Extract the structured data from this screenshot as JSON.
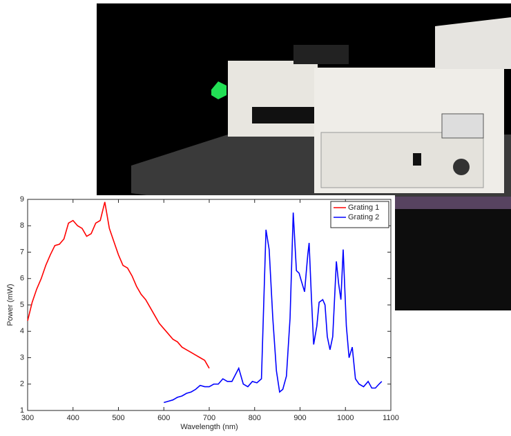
{
  "chart_data": {
    "type": "line",
    "xlabel": "Wavelength (nm)",
    "ylabel": "Power (mW)",
    "xlim": [
      300,
      1100
    ],
    "ylim": [
      1,
      9
    ],
    "xticks": [
      300,
      400,
      500,
      600,
      700,
      800,
      900,
      1000,
      1100
    ],
    "yticks": [
      1,
      2,
      3,
      4,
      5,
      6,
      7,
      8,
      9
    ],
    "legend": "upper right",
    "series": [
      {
        "name": "Grating 1",
        "color": "#ff0000",
        "x": [
          300,
          310,
          320,
          330,
          340,
          350,
          360,
          370,
          380,
          390,
          400,
          410,
          420,
          430,
          440,
          450,
          460,
          470,
          480,
          490,
          500,
          510,
          520,
          530,
          540,
          550,
          560,
          570,
          580,
          590,
          600,
          610,
          620,
          630,
          640,
          650,
          660,
          670,
          680,
          690,
          700
        ],
        "values": [
          4.4,
          5.1,
          5.6,
          6.0,
          6.5,
          6.9,
          7.25,
          7.3,
          7.5,
          8.1,
          8.2,
          8.0,
          7.9,
          7.6,
          7.7,
          8.1,
          8.2,
          8.9,
          7.9,
          7.4,
          6.9,
          6.5,
          6.4,
          6.1,
          5.7,
          5.4,
          5.2,
          4.9,
          4.6,
          4.3,
          4.1,
          3.9,
          3.7,
          3.6,
          3.4,
          3.3,
          3.2,
          3.1,
          3.0,
          2.9,
          2.6
        ]
      },
      {
        "name": "Grating 2",
        "color": "#0000ff",
        "x": [
          600,
          610,
          620,
          630,
          640,
          650,
          660,
          670,
          680,
          690,
          700,
          710,
          720,
          730,
          740,
          750,
          765,
          775,
          785,
          795,
          805,
          815,
          825,
          832,
          840,
          848,
          855,
          862,
          870,
          878,
          885,
          892,
          898,
          903,
          910,
          917,
          920,
          925,
          930,
          937,
          942,
          950,
          955,
          960,
          966,
          972,
          980,
          985,
          990,
          995,
          1002,
          1008,
          1015,
          1022,
          1030,
          1040,
          1050,
          1058,
          1066,
          1074,
          1080
        ],
        "values": [
          1.3,
          1.35,
          1.4,
          1.5,
          1.55,
          1.65,
          1.7,
          1.8,
          1.95,
          1.9,
          1.9,
          2.0,
          2.0,
          2.2,
          2.1,
          2.1,
          2.6,
          2.0,
          1.9,
          2.1,
          2.05,
          2.2,
          7.85,
          7.1,
          4.5,
          2.5,
          1.7,
          1.8,
          2.3,
          4.5,
          8.5,
          6.3,
          6.2,
          5.9,
          5.5,
          6.9,
          7.35,
          5.3,
          3.5,
          4.2,
          5.1,
          5.2,
          5.0,
          3.8,
          3.3,
          3.8,
          6.65,
          5.8,
          5.2,
          7.1,
          4.2,
          3.0,
          3.4,
          2.2,
          2.0,
          1.9,
          2.1,
          1.85,
          1.85,
          2.0,
          2.1
        ]
      }
    ]
  }
}
